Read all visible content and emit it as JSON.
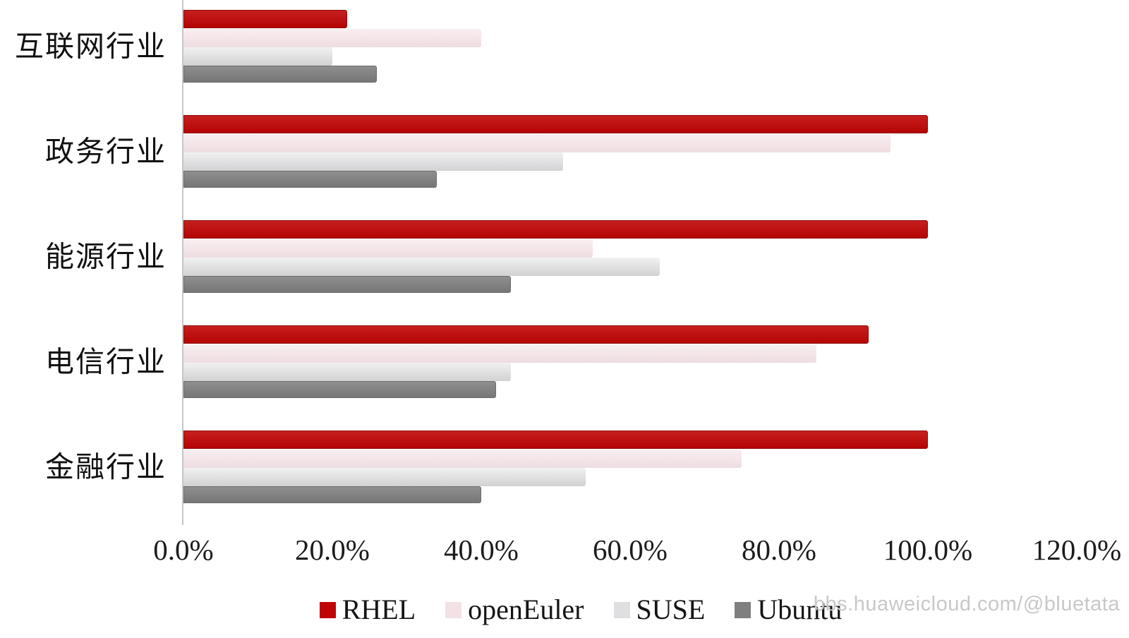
{
  "chart_data": {
    "type": "bar",
    "orientation": "horizontal",
    "title": "",
    "xlabel": "",
    "ylabel": "",
    "categories": [
      "互联网行业",
      "政务行业",
      "能源行业",
      "电信行业",
      "金融行业"
    ],
    "series": [
      {
        "name": "RHEL",
        "color": "#c00505",
        "values": [
          22,
          100,
          100,
          92,
          100
        ]
      },
      {
        "name": "openEuler",
        "color": "#f3e1e5",
        "values": [
          40,
          95,
          55,
          85,
          75
        ]
      },
      {
        "name": "SUSE",
        "color": "#dfdfe1",
        "values": [
          20,
          51,
          64,
          44,
          54
        ]
      },
      {
        "name": "Ubuntu",
        "color": "#7f7f7f",
        "values": [
          26,
          34,
          44,
          42,
          40
        ]
      }
    ],
    "xlim": [
      0,
      120
    ],
    "x_ticks": [
      0,
      20,
      40,
      60,
      80,
      100,
      120
    ],
    "x_tick_labels": [
      "0.0%",
      "20.0%",
      "40.0%",
      "60.0%",
      "80.0%",
      "100.0%",
      "120.0%"
    ],
    "grid": false,
    "legend_position": "bottom",
    "axis_color": "#c6c6c6",
    "tick_text_color": "#1c1c1c"
  },
  "watermark": {
    "text": "bbs.huaweicloud.com/@bluetata",
    "color": "#c8c8c8"
  }
}
